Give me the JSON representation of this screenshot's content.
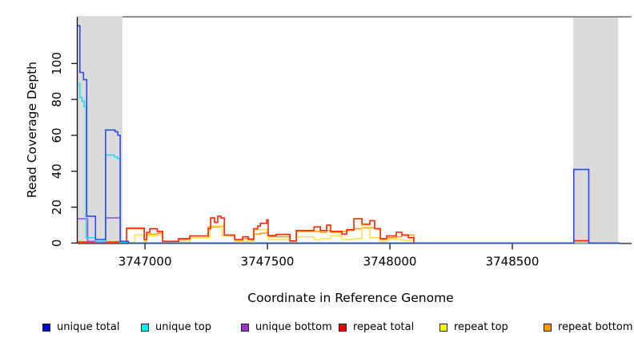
{
  "page": {
    "background": "#FFFFFF"
  },
  "chart_data": {
    "type": "line",
    "step": true,
    "title": "",
    "xlabel": "Coordinate in Reference Genome",
    "ylabel": "Read Coverage Depth",
    "xlim": [
      3746725,
      3748987
    ],
    "ylim": [
      0,
      126
    ],
    "grid": false,
    "legend_position": "bottom",
    "x_ticks": {
      "values": [
        3747000,
        3747500,
        3748000,
        3748500
      ],
      "labels": [
        "3747000",
        "3747500",
        "3748000",
        "3748500"
      ]
    },
    "y_ticks": {
      "values": [
        0,
        20,
        40,
        60,
        80,
        100
      ],
      "labels": [
        "0",
        "20",
        "40",
        "60",
        "80",
        "100"
      ]
    },
    "shaded_regions": [
      {
        "x0": 3746725,
        "x1": 3746908,
        "color": "#DBDBDB"
      },
      {
        "x0": 3748749,
        "x1": 3748932,
        "color": "#DBDBDB"
      }
    ],
    "frame": {
      "top_border_color": "#7F7F7F",
      "axis_color": "#111111"
    },
    "series": [
      {
        "name": "unique total",
        "color": "#2B4BEF",
        "legend_color": "#0000CD",
        "points": [
          [
            3746725,
            121
          ],
          [
            3746734,
            95
          ],
          [
            3746749,
            91
          ],
          [
            3746762,
            15
          ],
          [
            3746798,
            2
          ],
          [
            3746839,
            63
          ],
          [
            3746878,
            62
          ],
          [
            3746889,
            60
          ],
          [
            3746899,
            1
          ],
          [
            3746932,
            0
          ],
          [
            3748751,
            41
          ],
          [
            3748812,
            0
          ],
          [
            3748940,
            0
          ]
        ]
      },
      {
        "name": "unique top",
        "color": "#22DFEF",
        "legend_color": "#00EEEE",
        "points": [
          [
            3746725,
            89
          ],
          [
            3746734,
            81
          ],
          [
            3746743,
            79
          ],
          [
            3746752,
            76
          ],
          [
            3746760,
            3
          ],
          [
            3746798,
            1
          ],
          [
            3746839,
            49
          ],
          [
            3746876,
            48
          ],
          [
            3746887,
            47
          ],
          [
            3746899,
            0.5
          ],
          [
            3746932,
            0
          ],
          [
            3748940,
            0
          ]
        ]
      },
      {
        "name": "unique bottom",
        "color": "#9D52E0",
        "legend_color": "#9932CC",
        "points": [
          [
            3746725,
            13.5
          ],
          [
            3746766,
            1
          ],
          [
            3746798,
            0.5
          ],
          [
            3746839,
            14
          ],
          [
            3746899,
            0.5
          ],
          [
            3746932,
            0
          ],
          [
            3748940,
            0
          ]
        ]
      },
      {
        "name": "repeat total",
        "color": "#FF2400",
        "legend_color": "#EE0000",
        "points": [
          [
            3746725,
            0.5
          ],
          [
            3746925,
            8.3
          ],
          [
            3746997,
            2
          ],
          [
            3747007,
            6
          ],
          [
            3747020,
            8
          ],
          [
            3747050,
            6.5
          ],
          [
            3747072,
            1
          ],
          [
            3747137,
            2.5
          ],
          [
            3747183,
            4
          ],
          [
            3747258,
            8
          ],
          [
            3747268,
            14
          ],
          [
            3747284,
            11.5
          ],
          [
            3747297,
            15
          ],
          [
            3747310,
            14
          ],
          [
            3747324,
            4.5
          ],
          [
            3747366,
            2
          ],
          [
            3747399,
            3.5
          ],
          [
            3747422,
            2
          ],
          [
            3747444,
            8
          ],
          [
            3747460,
            9.5
          ],
          [
            3747471,
            11
          ],
          [
            3747497,
            13
          ],
          [
            3747503,
            4.2
          ],
          [
            3747536,
            4.8
          ],
          [
            3747592,
            1.2
          ],
          [
            3747618,
            7
          ],
          [
            3747690,
            9
          ],
          [
            3747716,
            7
          ],
          [
            3747742,
            10
          ],
          [
            3747758,
            6.5
          ],
          [
            3747804,
            5
          ],
          [
            3747824,
            7.5
          ],
          [
            3747853,
            13.5
          ],
          [
            3747886,
            10.5
          ],
          [
            3747918,
            12.5
          ],
          [
            3747938,
            8
          ],
          [
            3747961,
            2.5
          ],
          [
            3747987,
            4
          ],
          [
            3748026,
            6
          ],
          [
            3748049,
            4.5
          ],
          [
            3748075,
            3
          ],
          [
            3748098,
            0
          ],
          [
            3748751,
            1.3
          ],
          [
            3748812,
            0
          ],
          [
            3748940,
            0
          ]
        ]
      },
      {
        "name": "repeat top",
        "color": "#FFE34D",
        "legend_color": "#FFFF00",
        "points": [
          [
            3746725,
            0.3
          ],
          [
            3746958,
            4.5
          ],
          [
            3746997,
            0.8
          ],
          [
            3747007,
            4
          ],
          [
            3747050,
            4.5
          ],
          [
            3747072,
            0.5
          ],
          [
            3747137,
            1
          ],
          [
            3747183,
            3
          ],
          [
            3747265,
            9.5
          ],
          [
            3747315,
            4
          ],
          [
            3747366,
            1
          ],
          [
            3747444,
            7.5
          ],
          [
            3747497,
            6
          ],
          [
            3747503,
            2
          ],
          [
            3747592,
            0.8
          ],
          [
            3747618,
            3.5
          ],
          [
            3747690,
            2
          ],
          [
            3747716,
            2.5
          ],
          [
            3747758,
            4
          ],
          [
            3747804,
            2
          ],
          [
            3747853,
            2.5
          ],
          [
            3747886,
            10
          ],
          [
            3747918,
            3
          ],
          [
            3747961,
            1
          ],
          [
            3747987,
            2
          ],
          [
            3748049,
            1.5
          ],
          [
            3748098,
            0
          ],
          [
            3748751,
            0.5
          ],
          [
            3748812,
            0
          ],
          [
            3748940,
            0
          ]
        ]
      },
      {
        "name": "repeat bottom",
        "color": "#FF9E1F",
        "legend_color": "#FF9900",
        "points": [
          [
            3746725,
            0.8
          ],
          [
            3746925,
            8
          ],
          [
            3746997,
            1.5
          ],
          [
            3747007,
            5
          ],
          [
            3747050,
            5.5
          ],
          [
            3747072,
            0.8
          ],
          [
            3747137,
            2
          ],
          [
            3747183,
            3
          ],
          [
            3747258,
            9
          ],
          [
            3747310,
            9.5
          ],
          [
            3747324,
            4
          ],
          [
            3747366,
            1.5
          ],
          [
            3747399,
            2.5
          ],
          [
            3747444,
            5
          ],
          [
            3747471,
            5.5
          ],
          [
            3747497,
            6
          ],
          [
            3747503,
            3.5
          ],
          [
            3747592,
            1
          ],
          [
            3747618,
            6.5
          ],
          [
            3747716,
            6
          ],
          [
            3747742,
            7
          ],
          [
            3747758,
            6
          ],
          [
            3747804,
            6.5
          ],
          [
            3747824,
            7
          ],
          [
            3747853,
            8
          ],
          [
            3747886,
            8.5
          ],
          [
            3747938,
            8
          ],
          [
            3747961,
            2
          ],
          [
            3747987,
            3
          ],
          [
            3748026,
            3.5
          ],
          [
            3748049,
            4.5
          ],
          [
            3748098,
            0
          ],
          [
            3748940,
            0
          ]
        ]
      }
    ]
  }
}
